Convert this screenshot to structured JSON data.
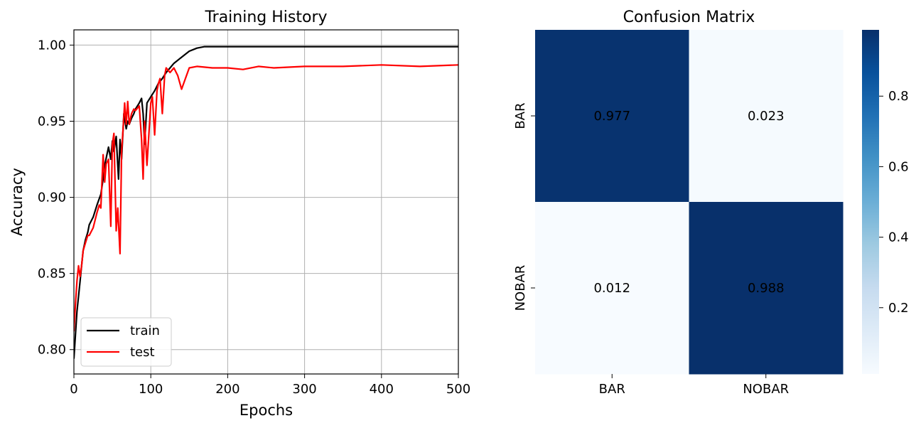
{
  "chart_data": [
    {
      "type": "line",
      "title": "Training History",
      "xlabel": "Epochs",
      "ylabel": "Accuracy",
      "xlim": [
        0,
        500
      ],
      "ylim": [
        0.784,
        1.01
      ],
      "xticks": [
        0,
        100,
        200,
        300,
        400,
        500
      ],
      "yticks": [
        0.8,
        0.85,
        0.9,
        0.95,
        1.0
      ],
      "xtick_labels": [
        "0",
        "100",
        "200",
        "300",
        "400",
        "500"
      ],
      "ytick_labels": [
        "0.80",
        "0.85",
        "0.90",
        "0.95",
        "1.00"
      ],
      "grid": true,
      "legend": "lower-left",
      "series": [
        {
          "name": "train",
          "color": "#000000",
          "x": [
            0,
            2,
            4,
            6,
            8,
            10,
            12,
            15,
            18,
            20,
            25,
            30,
            35,
            38,
            40,
            45,
            48,
            50,
            52,
            55,
            58,
            60,
            62,
            65,
            68,
            70,
            72,
            75,
            78,
            80,
            85,
            88,
            90,
            92,
            95,
            100,
            105,
            110,
            115,
            120,
            125,
            130,
            140,
            150,
            160,
            170,
            180,
            200,
            250,
            300,
            350,
            400,
            450,
            500
          ],
          "y": [
            0.794,
            0.81,
            0.825,
            0.835,
            0.845,
            0.855,
            0.865,
            0.872,
            0.877,
            0.882,
            0.887,
            0.895,
            0.902,
            0.912,
            0.921,
            0.933,
            0.925,
            0.937,
            0.93,
            0.94,
            0.912,
            0.938,
            0.925,
            0.955,
            0.945,
            0.95,
            0.948,
            0.952,
            0.955,
            0.958,
            0.962,
            0.965,
            0.955,
            0.935,
            0.962,
            0.966,
            0.97,
            0.975,
            0.978,
            0.982,
            0.985,
            0.988,
            0.992,
            0.996,
            0.998,
            0.999,
            0.999,
            0.999,
            0.999,
            0.999,
            0.999,
            0.999,
            0.999,
            0.999
          ]
        },
        {
          "name": "test",
          "color": "#ff0000",
          "x": [
            0,
            2,
            4,
            6,
            8,
            10,
            12,
            15,
            18,
            20,
            25,
            30,
            33,
            35,
            38,
            40,
            42,
            45,
            48,
            50,
            52,
            55,
            57,
            60,
            62,
            64,
            66,
            68,
            70,
            72,
            75,
            78,
            80,
            85,
            88,
            90,
            92,
            95,
            100,
            102,
            105,
            108,
            110,
            112,
            115,
            118,
            120,
            125,
            130,
            135,
            140,
            150,
            160,
            180,
            200,
            220,
            240,
            260,
            300,
            350,
            400,
            450,
            500
          ],
          "y": [
            0.812,
            0.83,
            0.845,
            0.855,
            0.848,
            0.855,
            0.865,
            0.87,
            0.875,
            0.875,
            0.88,
            0.89,
            0.895,
            0.893,
            0.928,
            0.91,
            0.922,
            0.925,
            0.881,
            0.935,
            0.942,
            0.878,
            0.893,
            0.863,
            0.93,
            0.945,
            0.962,
            0.948,
            0.963,
            0.948,
            0.955,
            0.958,
            0.957,
            0.96,
            0.938,
            0.912,
            0.95,
            0.921,
            0.962,
            0.966,
            0.941,
            0.97,
            0.975,
            0.978,
            0.955,
            0.98,
            0.985,
            0.982,
            0.985,
            0.98,
            0.971,
            0.985,
            0.986,
            0.985,
            0.985,
            0.984,
            0.986,
            0.985,
            0.986,
            0.986,
            0.987,
            0.986,
            0.987
          ]
        }
      ]
    },
    {
      "type": "heatmap",
      "title": "Confusion Matrix",
      "xlabel": "",
      "ylabel": "",
      "row_labels": [
        "BAR",
        "NOBAR"
      ],
      "col_labels": [
        "BAR",
        "NOBAR"
      ],
      "values": [
        [
          0.977,
          0.023
        ],
        [
          0.012,
          0.988
        ]
      ],
      "value_labels": [
        [
          "0.977",
          "0.023"
        ],
        [
          "0.012",
          "0.988"
        ]
      ],
      "colormap": "Blues",
      "color_low": "#f7fbff",
      "color_high": "#08306b",
      "colorbar_range": [
        0.012,
        0.988
      ],
      "colorbar_ticks": [
        0.2,
        0.4,
        0.6,
        0.8
      ],
      "colorbar_tick_labels": [
        "0.2",
        "0.4",
        "0.6",
        "0.8"
      ]
    }
  ]
}
